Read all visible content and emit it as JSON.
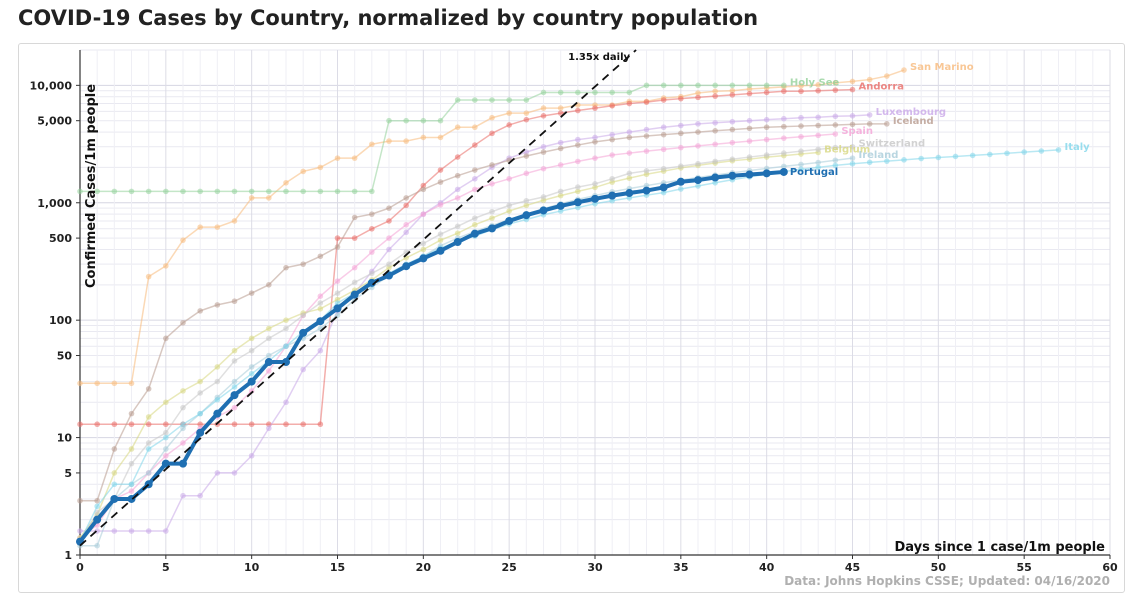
{
  "title": "COVID-19 Cases by Country, normalized by country population",
  "chart_data": {
    "type": "line",
    "xlabel": "Days since 1 case/1m people",
    "ylabel": "Confirmed Cases/1m people",
    "ylog": true,
    "xlim": [
      0,
      60
    ],
    "ylim": [
      1,
      20000
    ],
    "x_ticks": [
      0,
      5,
      10,
      15,
      20,
      25,
      30,
      35,
      40,
      45,
      50,
      55,
      60
    ],
    "y_ticks": [
      1,
      5,
      10,
      50,
      100,
      500,
      1000,
      5000,
      10000
    ],
    "y_tick_labels": [
      "1",
      "5",
      "10",
      "50",
      "100",
      "500",
      "1,000",
      "5,000",
      "10,000"
    ],
    "grid": true,
    "source_note": "Data: Johns Hopkins CSSE; Updated: 04/16/2020",
    "reference_line": {
      "label": "1.35x daily",
      "factor": 1.35,
      "start": 1.2
    },
    "series": [
      {
        "name": "Portugal",
        "color": "#1f6fb2",
        "highlight": true,
        "values": [
          1.3,
          2,
          3,
          3,
          4,
          6,
          6,
          11,
          16,
          23,
          30,
          44,
          44,
          78,
          98,
          126,
          165,
          208,
          240,
          288,
          336,
          390,
          463,
          545,
          605,
          700,
          784,
          860,
          940,
          1010,
          1080,
          1150,
          1210,
          1270,
          1350,
          1510,
          1560,
          1640,
          1700,
          1740,
          1780,
          1830
        ]
      },
      {
        "name": "San Marino",
        "color": "#f7b97a",
        "values": [
          29,
          29,
          29,
          29,
          235,
          290,
          480,
          620,
          620,
          700,
          1100,
          1100,
          1480,
          1850,
          2000,
          2400,
          2400,
          3150,
          3350,
          3350,
          3600,
          3600,
          4400,
          4400,
          5300,
          5800,
          5800,
          6400,
          6400,
          6800,
          6800,
          6800,
          7300,
          7300,
          7800,
          8000,
          8600,
          8900,
          9000,
          9300,
          9500,
          9700,
          9900,
          10100,
          10500,
          10800,
          11200,
          12000,
          13500
        ]
      },
      {
        "name": "Holy See",
        "color": "#93d19a",
        "values": [
          1250,
          1250,
          1250,
          1250,
          1250,
          1250,
          1250,
          1250,
          1250,
          1250,
          1250,
          1250,
          1250,
          1250,
          1250,
          1250,
          1250,
          1250,
          5000,
          5000,
          5000,
          5000,
          7500,
          7500,
          7500,
          7500,
          7500,
          8700,
          8700,
          8700,
          8700,
          8700,
          8700,
          10000,
          10000,
          10000,
          10000,
          10000,
          10000,
          10000,
          10000,
          10000
        ]
      },
      {
        "name": "Andorra",
        "color": "#ea6b66",
        "values": [
          13,
          13,
          13,
          13,
          13,
          13,
          13,
          13,
          13,
          13,
          13,
          13,
          13,
          13,
          13,
          500,
          500,
          600,
          700,
          950,
          1400,
          1900,
          2450,
          3100,
          3900,
          4600,
          5100,
          5500,
          5800,
          6100,
          6400,
          6700,
          7000,
          7200,
          7500,
          7700,
          7900,
          8100,
          8300,
          8500,
          8700,
          8900,
          8900,
          9000,
          9100,
          9200
        ]
      },
      {
        "name": "Luxembourg",
        "color": "#c9a8e8",
        "values": [
          1.6,
          1.6,
          1.6,
          1.6,
          1.6,
          1.6,
          3.2,
          3.2,
          5,
          5,
          7,
          12,
          20,
          38,
          55,
          120,
          170,
          260,
          400,
          560,
          800,
          1000,
          1300,
          1600,
          2000,
          2400,
          2700,
          3000,
          3250,
          3450,
          3600,
          3800,
          4000,
          4200,
          4400,
          4550,
          4700,
          4800,
          4900,
          5000,
          5100,
          5200,
          5300,
          5350,
          5450,
          5500,
          5600
        ]
      },
      {
        "name": "Iceland",
        "color": "#b89b8e",
        "values": [
          2.9,
          2.9,
          8,
          16,
          26,
          70,
          95,
          120,
          135,
          145,
          170,
          200,
          280,
          300,
          350,
          420,
          750,
          800,
          900,
          1100,
          1300,
          1500,
          1700,
          1900,
          2100,
          2300,
          2500,
          2700,
          2900,
          3100,
          3300,
          3450,
          3600,
          3700,
          3800,
          3900,
          4000,
          4100,
          4200,
          4300,
          4400,
          4450,
          4500,
          4550,
          4600,
          4650,
          4700,
          4700
        ]
      },
      {
        "name": "Spain",
        "color": "#f4a3d6",
        "values": [
          1.4,
          1.8,
          3,
          3.5,
          5,
          7,
          9,
          12,
          15,
          18,
          25,
          37,
          60,
          110,
          160,
          215,
          280,
          380,
          500,
          650,
          800,
          960,
          1100,
          1300,
          1450,
          1600,
          1780,
          1950,
          2100,
          2250,
          2400,
          2550,
          2650,
          2750,
          2850,
          2950,
          3050,
          3150,
          3250,
          3350,
          3450,
          3550,
          3650,
          3750,
          3850
        ]
      },
      {
        "name": "Belgium",
        "color": "#d7d77f",
        "values": [
          1.4,
          2.2,
          5,
          8,
          15,
          20,
          25,
          30,
          40,
          55,
          70,
          85,
          100,
          115,
          125,
          150,
          180,
          220,
          280,
          340,
          400,
          480,
          550,
          650,
          740,
          850,
          950,
          1050,
          1150,
          1250,
          1350,
          1500,
          1620,
          1750,
          1860,
          1980,
          2080,
          2180,
          2280,
          2350,
          2450,
          2520,
          2600,
          2680
        ]
      },
      {
        "name": "Switzerland",
        "color": "#c7c7c7",
        "values": [
          1.3,
          2.3,
          3,
          6,
          9,
          11,
          18,
          24,
          30,
          45,
          55,
          70,
          85,
          110,
          140,
          170,
          210,
          250,
          300,
          380,
          450,
          540,
          630,
          740,
          840,
          950,
          1040,
          1120,
          1250,
          1360,
          1450,
          1600,
          1780,
          1870,
          1950,
          2050,
          2150,
          2250,
          2350,
          2450,
          2550,
          2650,
          2750,
          2850,
          2950,
          3000
        ]
      },
      {
        "name": "Ireland",
        "color": "#a7ccd9",
        "values": [
          1.2,
          1.2,
          3,
          4,
          5,
          8,
          12,
          16,
          22,
          30,
          40,
          50,
          60,
          70,
          85,
          110,
          150,
          190,
          240,
          290,
          350,
          430,
          500,
          570,
          640,
          720,
          800,
          890,
          980,
          1070,
          1150,
          1240,
          1320,
          1400,
          1480,
          1560,
          1640,
          1720,
          1800,
          1880,
          1960,
          2040,
          2120,
          2200,
          2300,
          2400
        ]
      },
      {
        "name": "Italy",
        "color": "#7fd6ea",
        "values": [
          1.3,
          2.6,
          4,
          4,
          8,
          10,
          13,
          16,
          21,
          27,
          35,
          45,
          60,
          80,
          100,
          140,
          170,
          200,
          250,
          300,
          350,
          410,
          470,
          520,
          590,
          660,
          720,
          790,
          850,
          910,
          980,
          1040,
          1100,
          1160,
          1220,
          1310,
          1390,
          1480,
          1570,
          1660,
          1750,
          1840,
          1930,
          2000,
          2080,
          2150,
          2210,
          2260,
          2320,
          2380,
          2430,
          2480,
          2530,
          2580,
          2640,
          2700,
          2760,
          2820
        ]
      }
    ]
  }
}
